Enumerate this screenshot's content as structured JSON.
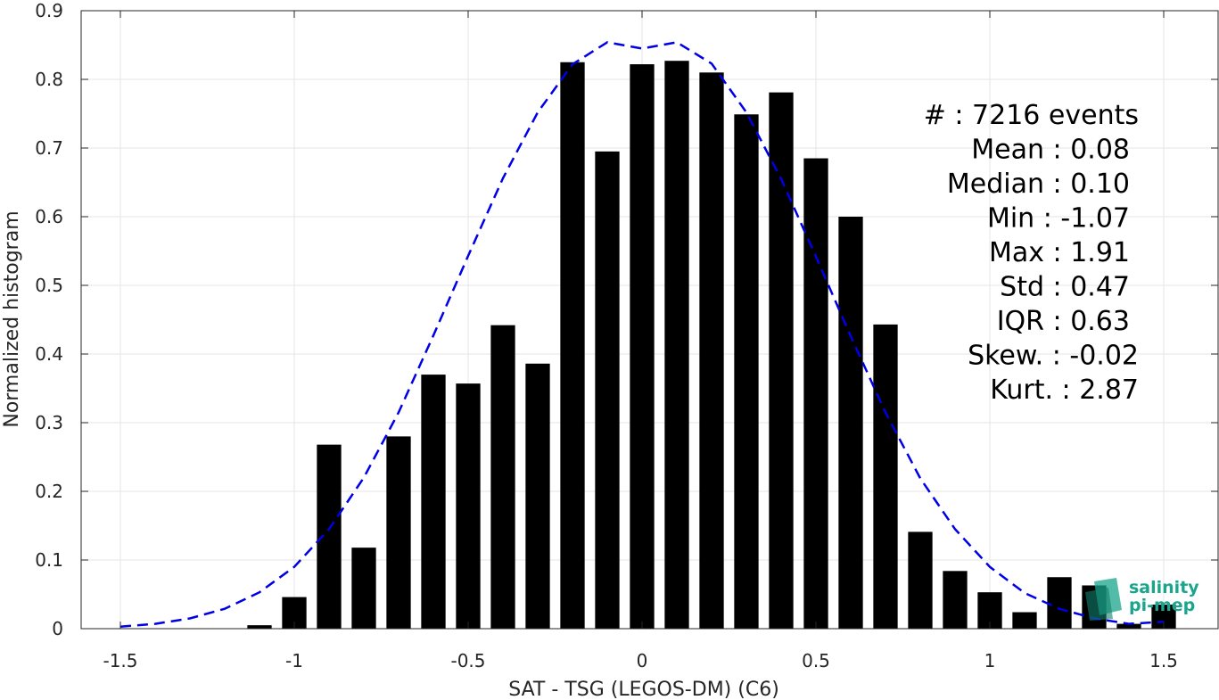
{
  "chart_data": {
    "type": "bar",
    "xlabel": "SAT - TSG (LEGOS-DM) (C6)",
    "ylabel": "Normalized histogram",
    "xlim": [
      -1.62,
      1.62
    ],
    "ylim": [
      0,
      0.9
    ],
    "grid": true,
    "x_ticks": [
      -1.5,
      -1,
      -0.5,
      0,
      0.5,
      1,
      1.5
    ],
    "x_tick_labels": [
      "-1.5",
      "-1",
      "-0.5",
      "0",
      "0.5",
      "1",
      "1.5"
    ],
    "y_ticks": [
      0,
      0.1,
      0.2,
      0.3,
      0.4,
      0.5,
      0.6,
      0.7,
      0.8,
      0.9
    ],
    "y_tick_labels": [
      "0",
      "0.1",
      "0.2",
      "0.3",
      "0.4",
      "0.5",
      "0.6",
      "0.7",
      "0.8",
      "0.9"
    ],
    "bin_width": 0.1,
    "bars": {
      "x": [
        -1.1,
        -1.0,
        -0.9,
        -0.8,
        -0.7,
        -0.6,
        -0.5,
        -0.4,
        -0.3,
        -0.2,
        -0.1,
        0.0,
        0.1,
        0.2,
        0.3,
        0.4,
        0.5,
        0.6,
        0.7,
        0.8,
        0.9,
        1.0,
        1.1,
        1.2,
        1.3,
        1.4,
        1.5
      ],
      "values": [
        0.005,
        0.046,
        0.268,
        0.118,
        0.28,
        0.37,
        0.357,
        0.442,
        0.386,
        0.825,
        0.695,
        0.822,
        0.827,
        0.81,
        0.749,
        0.781,
        0.685,
        0.6,
        0.443,
        0.141,
        0.084,
        0.053,
        0.024,
        0.075,
        0.063,
        0.007,
        0.035
      ],
      "color": "#000000"
    },
    "fit_curve": {
      "style": "dashed",
      "color": "#0000e6",
      "x": [
        -1.5,
        -1.4,
        -1.3,
        -1.2,
        -1.1,
        -1.0,
        -0.9,
        -0.8,
        -0.7,
        -0.6,
        -0.5,
        -0.4,
        -0.3,
        -0.2,
        -0.1,
        0.0,
        0.1,
        0.2,
        0.3,
        0.4,
        0.5,
        0.6,
        0.7,
        0.8,
        0.9,
        1.0,
        1.1,
        1.2,
        1.3,
        1.4,
        1.5
      ],
      "y": [
        0.003,
        0.007,
        0.015,
        0.029,
        0.053,
        0.09,
        0.145,
        0.22,
        0.315,
        0.427,
        0.543,
        0.656,
        0.752,
        0.822,
        0.854,
        0.845,
        0.854,
        0.823,
        0.752,
        0.655,
        0.542,
        0.426,
        0.315,
        0.219,
        0.145,
        0.09,
        0.052,
        0.029,
        0.015,
        0.007,
        0.01
      ]
    },
    "stats": [
      {
        "label": "#  : 7216 events",
        "indent": 0
      },
      {
        "label": "Mean : 0.08",
        "indent": 1
      },
      {
        "label": "Median : 0.10",
        "indent": 1
      },
      {
        "label": "Min : -1.07",
        "indent": 1
      },
      {
        "label": "Max : 1.91",
        "indent": 1
      },
      {
        "label": "Std : 0.47",
        "indent": 1
      },
      {
        "label": "IQR : 0.63",
        "indent": 1
      },
      {
        "label": "Skew. : -0.02",
        "indent": 0
      },
      {
        "label": "Kurt. : 2.87",
        "indent": 0
      }
    ]
  },
  "logo": {
    "line1": "salinity",
    "line2": "pi-mep",
    "color": "#1aa58c"
  }
}
